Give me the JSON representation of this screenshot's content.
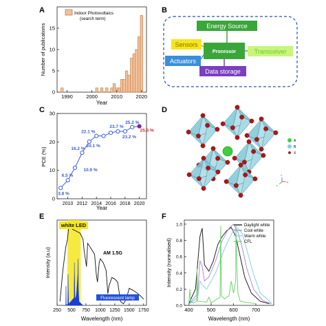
{
  "panels": {
    "A": "A",
    "B": "B",
    "C": "C",
    "D": "D",
    "E": "E",
    "F": "F"
  },
  "colors": {
    "bar_fill": "#f2c29a",
    "bar_stroke": "#c07a4a",
    "line_blue": "#3d5bd9",
    "purple": "#7a2b8e",
    "red": "#e0232b",
    "energy_green": "#3aa63a",
    "sensor_yellow": "#f5e61e",
    "actuator_blue": "#3a8fd9",
    "datastorage_purple": "#7b3fc0",
    "transceiver_green": "#b9f06a",
    "processor_green": "#3aa63a",
    "fluorescent_blue": "#1a3fd6",
    "led_yellow": "#f5e61e"
  },
  "panelB": {
    "energy_source": "Energy Source",
    "sensors": "Sensors",
    "processor": "Processor",
    "transceiver": "Transceiver",
    "actuators": "Actuators",
    "data_storage": "Data storage"
  },
  "panelD": {
    "legend": [
      "A",
      "B",
      "X"
    ],
    "axes": [
      "a",
      "b",
      "c"
    ]
  },
  "chart_data": [
    {
      "id": "A",
      "type": "bar",
      "legend": [
        "Indoor Photovoltaics",
        "(search term)"
      ],
      "xlabel": "Year",
      "ylabel": "Number of publications",
      "xticks": [
        1990,
        2000,
        2010,
        2020
      ],
      "yticks": [
        0,
        5,
        10,
        15
      ],
      "xlim": [
        1986,
        2022
      ],
      "ylim": [
        0,
        20
      ],
      "years": [
        1988,
        2002,
        2004,
        2006,
        2008,
        2009,
        2010,
        2011,
        2012,
        2013,
        2014,
        2015,
        2016,
        2017,
        2018,
        2019,
        2020
      ],
      "values": [
        1,
        1,
        1,
        1,
        1,
        2,
        1,
        1,
        3,
        3,
        5,
        4,
        8,
        9,
        10,
        13,
        18
      ]
    },
    {
      "id": "C",
      "type": "line",
      "xlabel": "Year",
      "ylabel": "PCE (%)",
      "xticks": [
        2010,
        2012,
        2014,
        2016,
        2018,
        2020
      ],
      "yticks": [
        0,
        10,
        20,
        30
      ],
      "xlim": [
        2008.5,
        2021
      ],
      "ylim": [
        0,
        30
      ],
      "x": [
        2009,
        2010,
        2011,
        2012,
        2013,
        2014,
        2015,
        2016,
        2017,
        2018,
        2019,
        2020
      ],
      "y": [
        3.8,
        6.5,
        10.9,
        16.2,
        20.1,
        22.1,
        22.1,
        23.2,
        23.7,
        23.7,
        25.2,
        25.5
      ],
      "labels": [
        {
          "text": "3.8 %",
          "x": 2009,
          "y": 3.8,
          "color": "#3d5bd9"
        },
        {
          "text": "6.5 %",
          "x": 2010,
          "y": 6.5,
          "color": "#3d5bd9"
        },
        {
          "text": "10.9 %",
          "x": 2012,
          "y": 10.9,
          "color": "#3d5bd9"
        },
        {
          "text": "16.2 %",
          "x": 2012,
          "y": 16.2,
          "color": "#3d5bd9"
        },
        {
          "text": "20.1 %",
          "x": 2015,
          "y": 20.1,
          "color": "#3d5bd9"
        },
        {
          "text": "22.1 %",
          "x": 2014,
          "y": 22.1,
          "color": "#3d5bd9"
        },
        {
          "text": "23.7 %",
          "x": 2017,
          "y": 23.7,
          "color": "#3d5bd9"
        },
        {
          "text": "23.2 %",
          "x": 2018,
          "y": 23.2,
          "color": "#3d5bd9"
        },
        {
          "text": "25.2 %",
          "x": 2019,
          "y": 25.2,
          "color": "#3d5bd9"
        },
        {
          "text": "25.5 %",
          "x": 2020,
          "y": 25.5,
          "color": "#e0232b"
        }
      ]
    },
    {
      "id": "E",
      "type": "line",
      "xlabel": "Wavelength (nm)",
      "ylabel": "Intensity (a.u)",
      "xticks": [
        250,
        500,
        750,
        1000,
        1250,
        1500,
        1750
      ],
      "xlim": [
        250,
        1800
      ],
      "ylim": [
        0,
        1.1
      ],
      "series": [
        {
          "name": "AM 1.5G",
          "x": [
            300,
            350,
            400,
            430,
            450,
            480,
            500,
            520,
            550,
            600,
            650,
            700,
            720,
            760,
            780,
            800,
            850,
            900,
            930,
            950,
            980,
            1000,
            1050,
            1100,
            1130,
            1150,
            1200,
            1250,
            1300,
            1350,
            1400,
            1450,
            1500,
            1550,
            1600,
            1650,
            1700,
            1750
          ],
          "y": [
            0.05,
            0.45,
            0.75,
            0.85,
            1.0,
            1.02,
            1.0,
            0.98,
            0.97,
            0.95,
            0.93,
            0.85,
            0.7,
            0.5,
            0.8,
            0.78,
            0.72,
            0.66,
            0.4,
            0.3,
            0.55,
            0.6,
            0.55,
            0.45,
            0.15,
            0.25,
            0.36,
            0.34,
            0.3,
            0.05,
            0.02,
            0.08,
            0.22,
            0.2,
            0.18,
            0.15,
            0.12,
            0.08
          ]
        },
        {
          "name": "Fluorescent lamp",
          "x": [
            400,
            405,
            410,
            435,
            440,
            450,
            490,
            545,
            550,
            560,
            580,
            590,
            610,
            615,
            620,
            630,
            700
          ],
          "y": [
            0,
            0.25,
            0,
            0.02,
            0.4,
            0.02,
            0.05,
            0.1,
            0.55,
            0.08,
            0.12,
            0.18,
            0.4,
            0.6,
            0.2,
            0.05,
            0
          ]
        }
      ],
      "annotations": [
        "white LED",
        "AM 1.5G",
        "Fluorescent lamp"
      ]
    },
    {
      "id": "F",
      "type": "line",
      "xlabel": "Wavelength (nm)",
      "ylabel": "Intensity (normalised)",
      "xticks": [
        400,
        500,
        600,
        700
      ],
      "yticks": [
        0.0,
        0.2,
        0.4,
        0.6,
        0.8,
        1.0
      ],
      "xlim": [
        380,
        780
      ],
      "ylim": [
        0,
        1.05
      ],
      "series": [
        {
          "name": "Daylight white",
          "color": "#222222",
          "x": [
            400,
            430,
            450,
            460,
            470,
            490,
            510,
            530,
            550,
            570,
            590,
            610,
            630,
            650,
            680,
            720,
            760
          ],
          "y": [
            0.02,
            0.2,
            0.85,
            0.95,
            0.5,
            0.42,
            0.55,
            0.75,
            0.85,
            0.92,
            0.96,
            0.85,
            0.6,
            0.35,
            0.15,
            0.05,
            0.02
          ]
        },
        {
          "name": "Cool white",
          "color": "#b08ad9",
          "x": [
            400,
            440,
            450,
            460,
            470,
            490,
            520,
            550,
            580,
            600,
            620,
            640,
            660,
            690,
            730,
            770
          ],
          "y": [
            0.01,
            0.15,
            0.55,
            0.48,
            0.3,
            0.35,
            0.55,
            0.8,
            0.95,
            1.0,
            0.9,
            0.7,
            0.45,
            0.2,
            0.06,
            0.02
          ]
        },
        {
          "name": "Warm white",
          "color": "#7fd4e6",
          "x": [
            400,
            440,
            450,
            460,
            480,
            520,
            560,
            600,
            620,
            640,
            660,
            690,
            720,
            770
          ],
          "y": [
            0.01,
            0.1,
            0.3,
            0.25,
            0.2,
            0.4,
            0.7,
            0.93,
            0.95,
            0.88,
            0.68,
            0.38,
            0.15,
            0.03
          ]
        },
        {
          "name": "CFL",
          "color": "#6dd46d",
          "x": [
            400,
            405,
            408,
            420,
            435,
            437,
            440,
            480,
            490,
            500,
            540,
            543,
            546,
            560,
            580,
            590,
            600,
            610,
            611,
            615,
            620,
            630,
            700
          ],
          "y": [
            0.02,
            0.2,
            0.05,
            0.03,
            0.05,
            0.45,
            0.05,
            0.04,
            0.1,
            0.03,
            0.1,
            0.98,
            0.12,
            0.08,
            0.12,
            0.3,
            0.15,
            0.3,
            0.98,
            0.5,
            0.15,
            0.05,
            0.02
          ]
        }
      ]
    }
  ]
}
